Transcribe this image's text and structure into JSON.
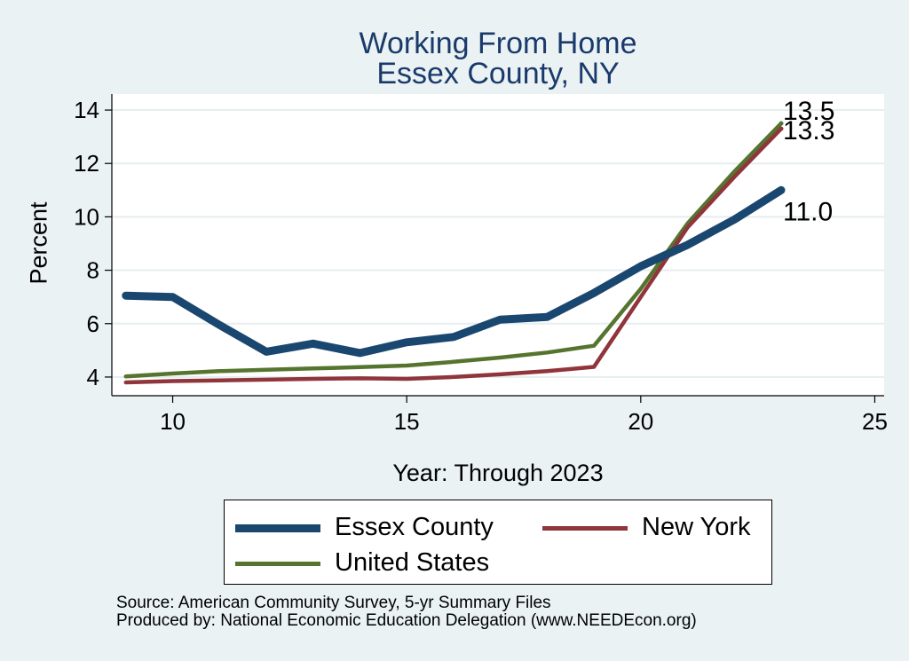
{
  "chart_data": {
    "type": "line",
    "title": [
      "Working From Home",
      "Essex County, NY"
    ],
    "xlabel": "Year: Through 2023",
    "ylabel": "Percent",
    "x": [
      9,
      10,
      11,
      12,
      13,
      14,
      15,
      16,
      17,
      18,
      19,
      20,
      21,
      22,
      23
    ],
    "xlim": [
      8.7,
      25.2
    ],
    "ylim": [
      3.3,
      14.6
    ],
    "xticks": [
      10,
      15,
      20,
      25
    ],
    "yticks": [
      4,
      6,
      8,
      10,
      12,
      14
    ],
    "grid": true,
    "legend_position": "bottom",
    "series": [
      {
        "name": "Essex County",
        "color": "#1a476f",
        "values": [
          7.05,
          7.0,
          5.95,
          4.95,
          5.25,
          4.9,
          5.3,
          5.5,
          6.15,
          6.25,
          7.15,
          8.15,
          8.95,
          9.9,
          11.0
        ],
        "end_label": "11.0"
      },
      {
        "name": "New York",
        "color": "#90353b",
        "values": [
          3.8,
          3.85,
          3.87,
          3.9,
          3.93,
          3.95,
          3.93,
          4.0,
          4.1,
          4.22,
          4.38,
          7.0,
          9.6,
          11.5,
          13.3
        ],
        "end_label": "13.3"
      },
      {
        "name": "United States",
        "color": "#55752f",
        "values": [
          4.02,
          4.13,
          4.22,
          4.27,
          4.32,
          4.37,
          4.43,
          4.57,
          4.73,
          4.92,
          5.17,
          7.3,
          9.75,
          11.7,
          13.5
        ],
        "end_label": "13.5"
      }
    ]
  },
  "source": {
    "line1": "Source: American Community Survey, 5-yr Summary Files",
    "line2": "Produced by: National Economic Education Delegation (www.NEEDEcon.org)"
  }
}
